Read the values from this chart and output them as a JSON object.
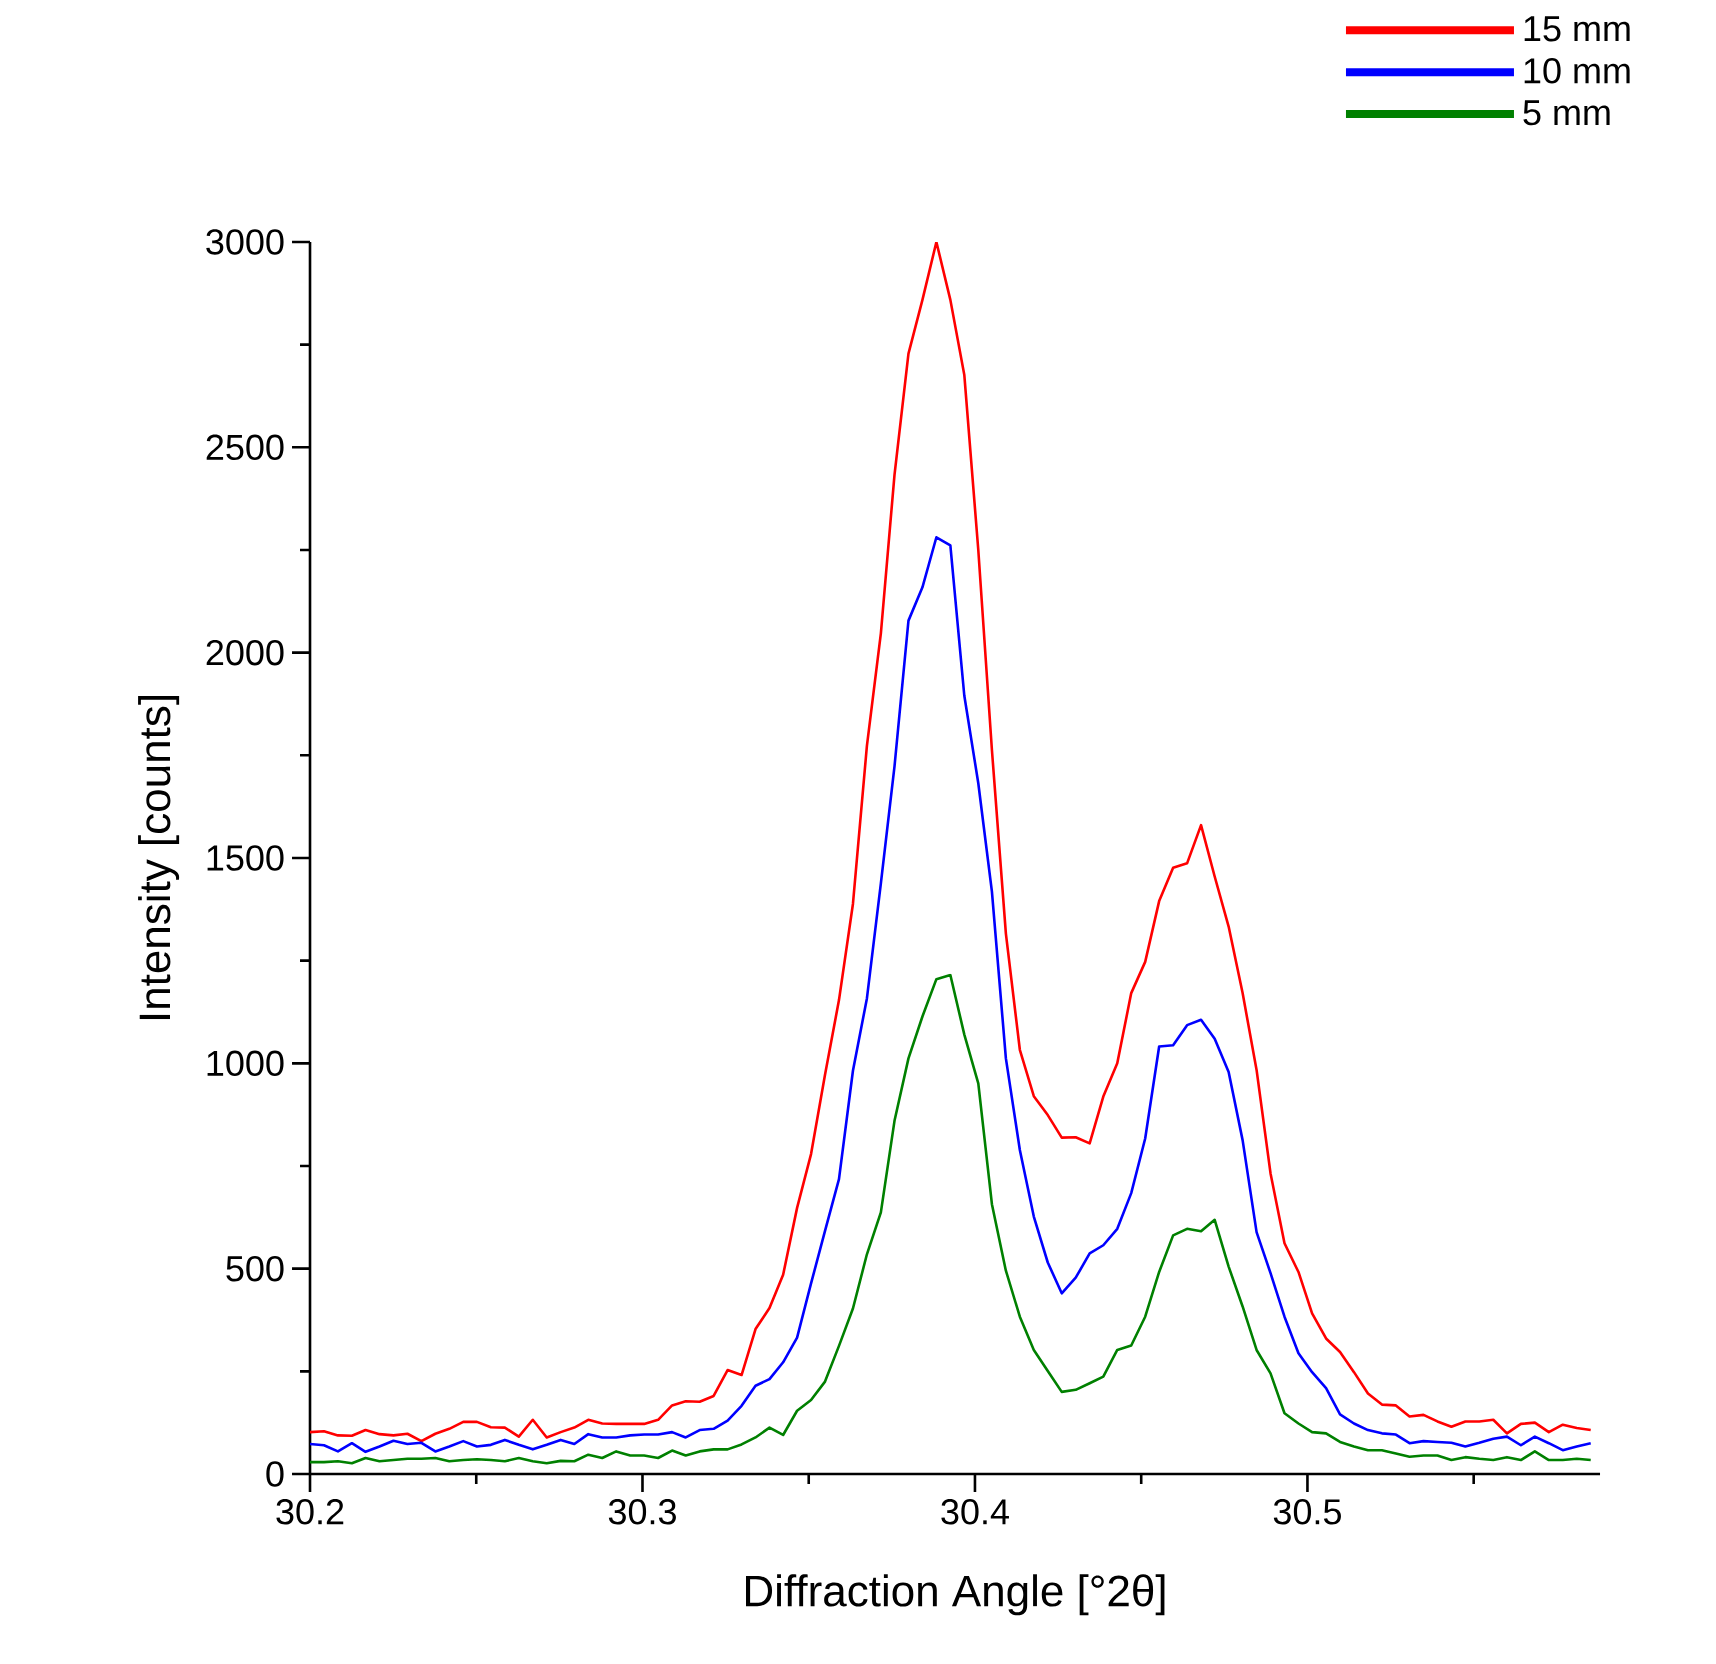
{
  "chart_data": {
    "type": "line",
    "xlabel": "Diffraction Angle [°2θ]",
    "ylabel": "Intensity [counts]",
    "xlim": [
      30.2,
      30.588
    ],
    "ylim": [
      0,
      3000
    ],
    "xticks": [
      30.2,
      {
        "value": 30.25,
        "label": null
      },
      30.3,
      {
        "value": 30.35,
        "label": null
      },
      30.4,
      {
        "value": 30.45,
        "label": null
      },
      30.5,
      {
        "value": 30.55,
        "label": null
      }
    ],
    "yticks": [
      0,
      {
        "value": 250,
        "label": null
      },
      500,
      {
        "value": 750,
        "label": null
      },
      1000,
      {
        "value": 1250,
        "label": null
      },
      1500,
      {
        "value": 1750,
        "label": null
      },
      2000,
      {
        "value": 2250,
        "label": null
      },
      2500,
      {
        "value": 2750,
        "label": null
      },
      3000
    ],
    "legend": "top right",
    "x": [
      30.2,
      30.2042,
      30.2084,
      30.2126,
      30.2167,
      30.2209,
      30.2251,
      30.2293,
      30.2335,
      30.2377,
      30.2419,
      30.2461,
      30.2502,
      30.2544,
      30.2586,
      30.2628,
      30.267,
      30.2712,
      30.2754,
      30.2795,
      30.2837,
      30.2879,
      30.2921,
      30.2963,
      30.3005,
      30.3047,
      30.3089,
      30.313,
      30.3172,
      30.3214,
      30.3256,
      30.3298,
      30.334,
      30.3382,
      30.3423,
      30.3465,
      30.3507,
      30.3549,
      30.3591,
      30.3633,
      30.3675,
      30.3717,
      30.3758,
      30.38,
      30.3842,
      30.3884,
      30.3926,
      30.3968,
      30.401,
      30.4051,
      30.4093,
      30.4135,
      30.4177,
      30.4219,
      30.4261,
      30.4303,
      30.4345,
      30.4386,
      30.4428,
      30.447,
      30.4512,
      30.4554,
      30.4596,
      30.4638,
      30.468,
      30.4721,
      30.4763,
      30.4805,
      30.4847,
      30.4889,
      30.4931,
      30.4973,
      30.5014,
      30.5056,
      30.5098,
      30.514,
      30.5182,
      30.5224,
      30.5266,
      30.5307,
      30.5349,
      30.5391,
      30.5433,
      30.5475,
      30.5517,
      30.5559,
      30.56,
      30.5642,
      30.5684,
      30.5726,
      30.5768,
      30.581,
      30.5852
    ],
    "series": [
      {
        "name": "15 mm",
        "color": "#ff0000",
        "values": [
          102,
          104,
          94,
          93,
          107,
          97,
          94,
          98,
          80,
          98,
          110,
          127,
          127,
          114,
          113,
          91,
          132,
          89,
          102,
          113,
          132,
          123,
          122,
          122,
          122,
          132,
          167,
          177,
          176,
          190,
          253,
          241,
          353,
          404,
          485,
          648,
          779,
          972,
          1154,
          1388,
          1773,
          2047,
          2433,
          2728,
          2859,
          3000,
          2859,
          2676,
          2250,
          1763,
          1316,
          1033,
          920,
          874,
          819,
          820,
          805,
          919,
          1000,
          1171,
          1247,
          1395,
          1476,
          1487,
          1580,
          1455,
          1333,
          1171,
          984,
          732,
          562,
          492,
          391,
          330,
          297,
          248,
          196,
          169,
          167,
          140,
          144,
          128,
          115,
          128,
          128,
          132,
          99,
          122,
          125,
          102,
          120,
          112,
          107
        ]
      },
      {
        "name": "10 mm",
        "color": "#0000ff",
        "values": [
          73,
          70,
          55,
          75,
          54,
          67,
          81,
          73,
          76,
          55,
          67,
          80,
          67,
          71,
          83,
          71,
          60,
          71,
          83,
          73,
          97,
          89,
          89,
          94,
          96,
          96,
          102,
          89,
          107,
          110,
          130,
          166,
          215,
          231,
          272,
          332,
          464,
          592,
          718,
          982,
          1158,
          1438,
          1723,
          2078,
          2159,
          2281,
          2261,
          1895,
          1682,
          1418,
          1012,
          789,
          627,
          515,
          440,
          478,
          537,
          557,
          597,
          684,
          817,
          1041,
          1044,
          1093,
          1106,
          1060,
          979,
          813,
          589,
          489,
          383,
          294,
          248,
          209,
          145,
          123,
          107,
          99,
          96,
          75,
          80,
          78,
          76,
          67,
          76,
          86,
          91,
          70,
          91,
          75,
          58,
          67,
          75
        ]
      },
      {
        "name": "5 mm",
        "color": "#008000",
        "values": [
          29,
          29,
          31,
          26,
          39,
          31,
          34,
          37,
          37,
          39,
          31,
          34,
          36,
          34,
          31,
          39,
          31,
          26,
          32,
          31,
          47,
          39,
          55,
          45,
          45,
          39,
          57,
          45,
          55,
          60,
          60,
          72,
          89,
          113,
          95,
          154,
          180,
          225,
          312,
          403,
          535,
          637,
          860,
          1012,
          1114,
          1205,
          1215,
          1070,
          951,
          657,
          495,
          383,
          302,
          251,
          200,
          205,
          221,
          237,
          302,
          313,
          383,
          492,
          581,
          597,
          591,
          619,
          505,
          408,
          302,
          245,
          148,
          123,
          102,
          99,
          78,
          67,
          58,
          58,
          50,
          42,
          45,
          45,
          34,
          41,
          37,
          34,
          41,
          34,
          55,
          34,
          34,
          37,
          34
        ]
      }
    ]
  }
}
